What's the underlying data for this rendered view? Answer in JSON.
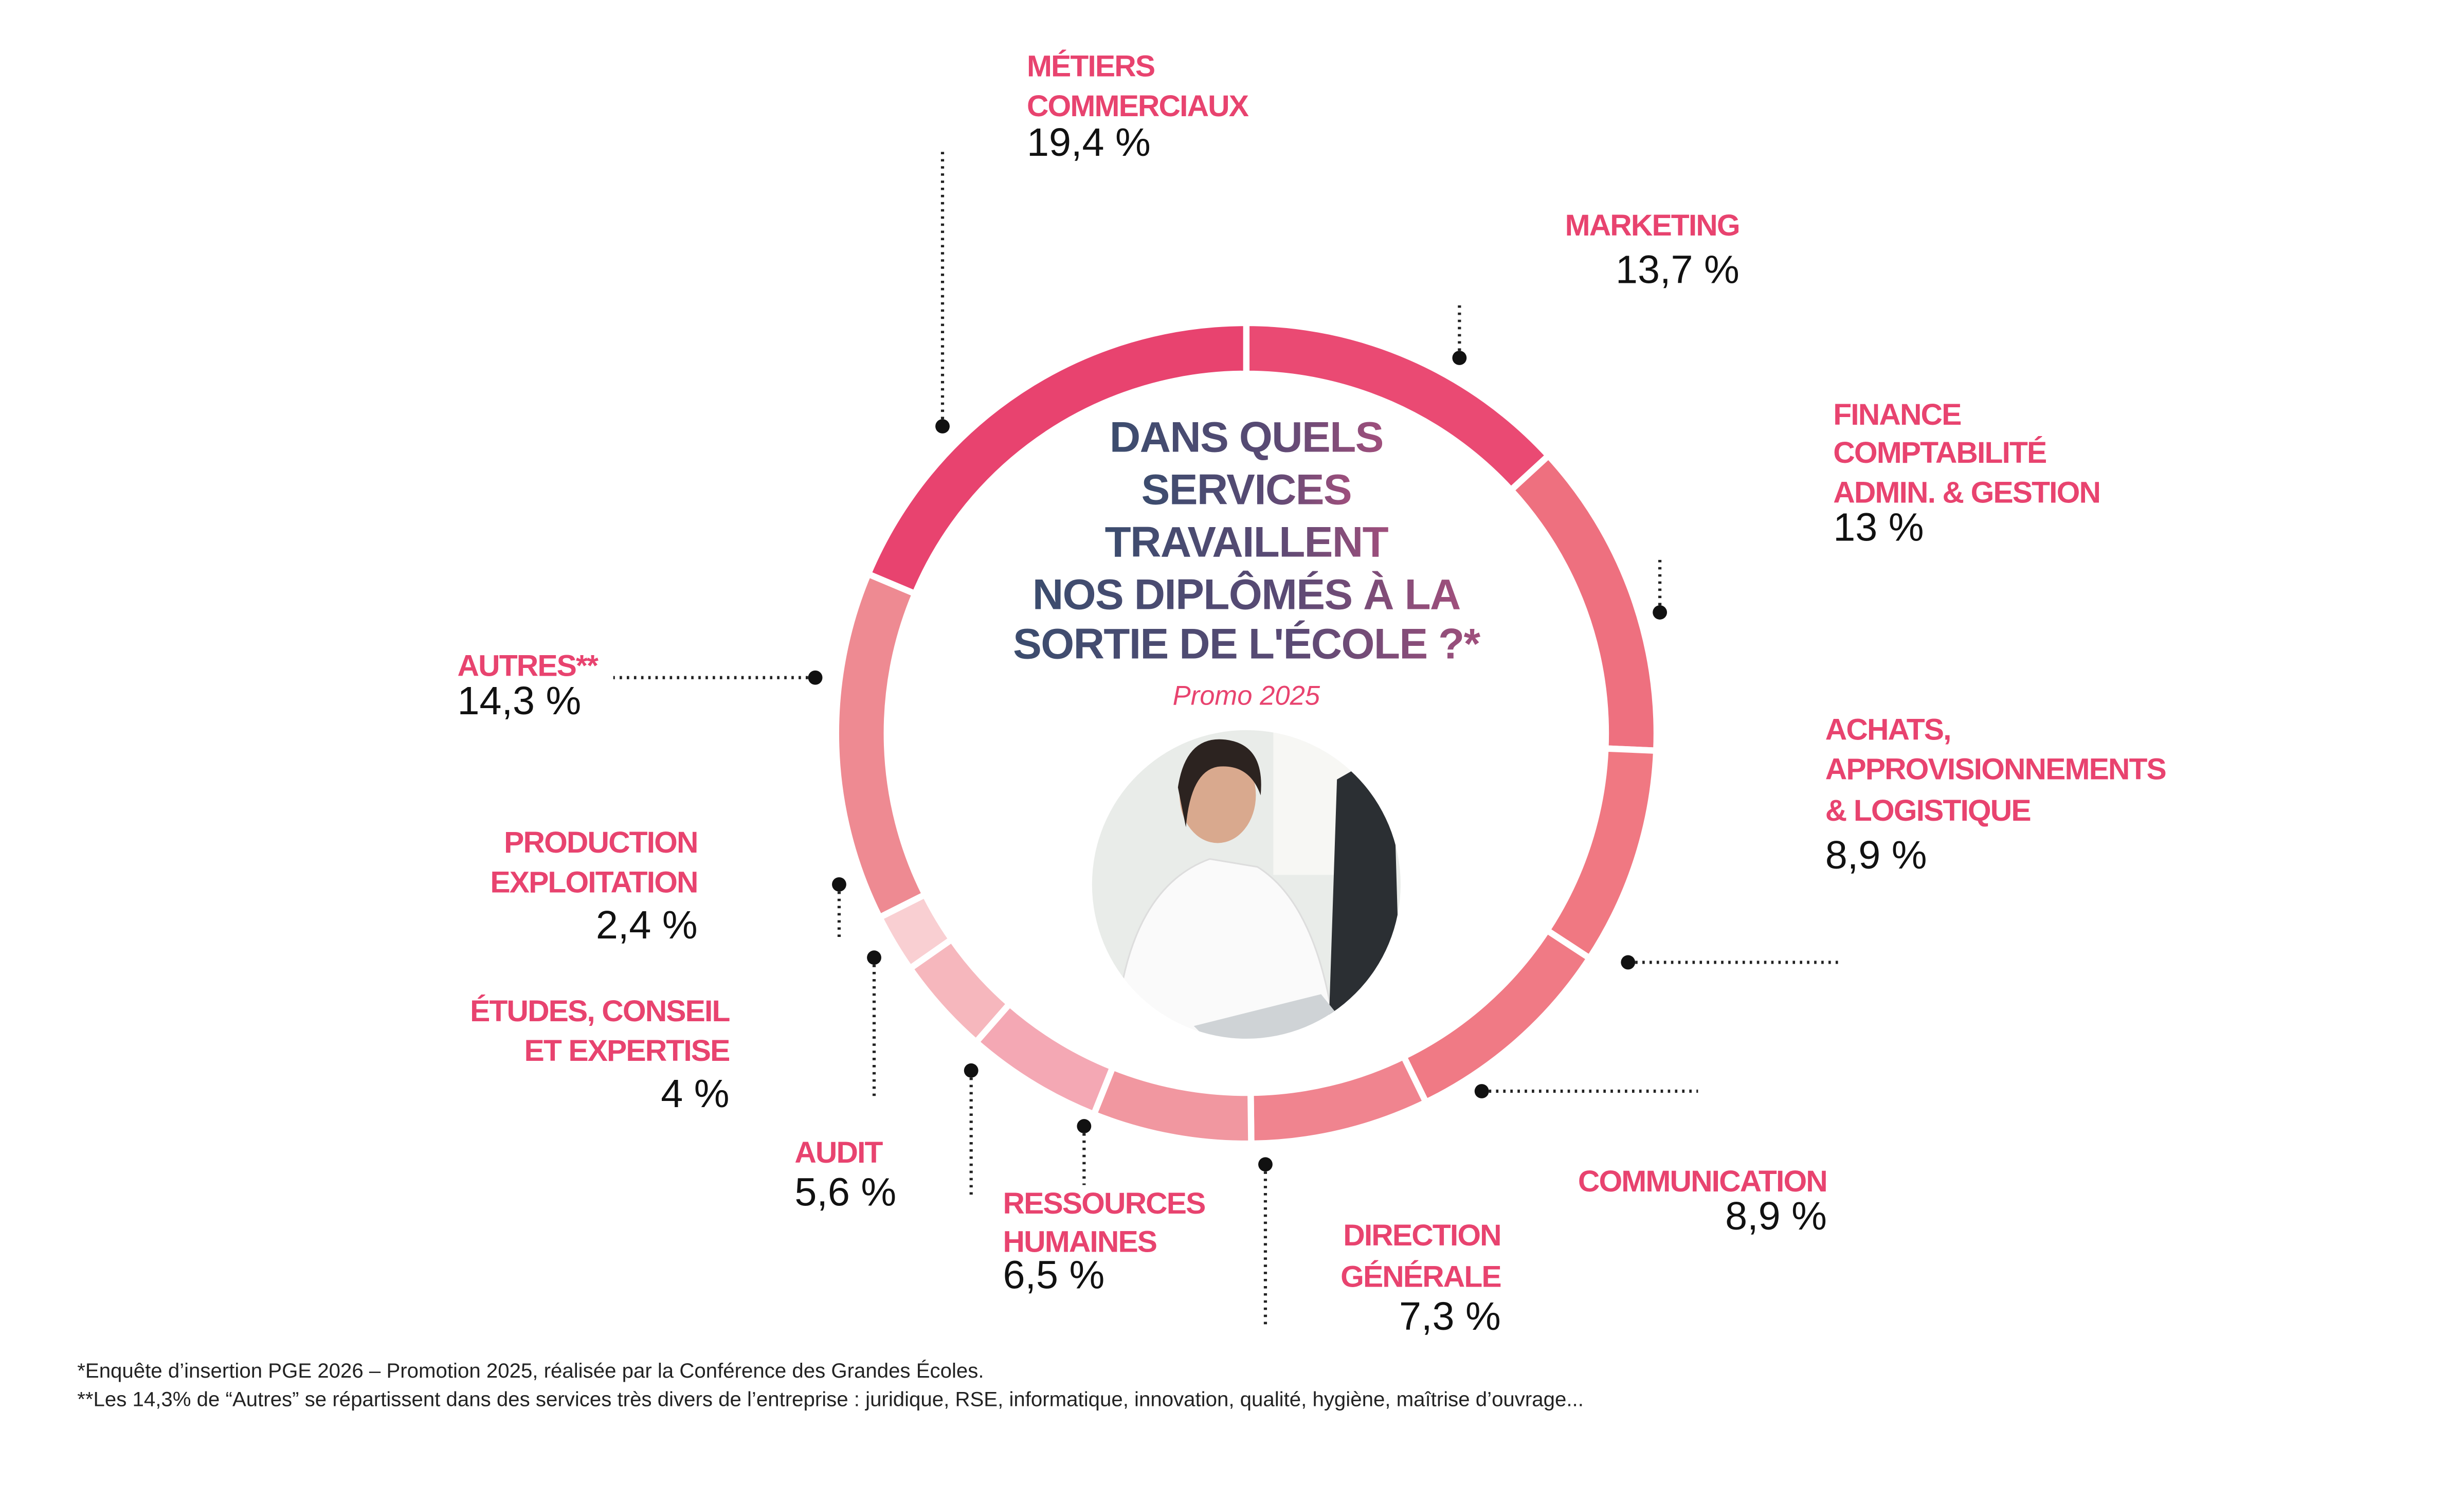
{
  "chart_data": {
    "type": "donut",
    "title": [
      "DANS QUELS",
      "SERVICES",
      "TRAVAILLENT",
      "NOS DIPLÔMÉS À LA",
      "SORTIE DE L'ÉCOLE ?*"
    ],
    "subtitle": "Promo 2025",
    "categories": [
      [
        "MARKETING"
      ],
      [
        "FINANCE",
        "COMPTABILITÉ",
        "ADMIN. & GESTION"
      ],
      [
        "ACHATS,",
        "APPROVISIONNEMENTS",
        "& LOGISTIQUE"
      ],
      [
        "COMMUNICATION"
      ],
      [
        "DIRECTION",
        "GÉNÉRALE"
      ],
      [
        "RESSOURCES",
        "HUMAINES"
      ],
      [
        "AUDIT"
      ],
      [
        "ÉTUDES, CONSEIL",
        "ET EXPERTISE"
      ],
      [
        "PRODUCTION",
        "EXPLOITATION"
      ],
      [
        "AUTRES**"
      ],
      [
        "MÉTIERS",
        "COMMERCIAUX"
      ]
    ],
    "values": [
      13.7,
      13,
      8.9,
      8.9,
      7.3,
      6.5,
      5.6,
      4,
      2.4,
      14.3,
      19.4
    ],
    "value_labels": [
      "13,7 %",
      "13 %",
      "8,9 %",
      "8,9 %",
      "7,3 %",
      "6,5 %",
      "5,6 %",
      "4 %",
      "2,4 %",
      "14,3 %",
      "19,4 %"
    ],
    "colors": [
      "#ea4a73",
      "#ee707f",
      "#f07882",
      "#f07a85",
      "#f0848f",
      "#f197a0",
      "#f4a8b4",
      "#f6b7bd",
      "#f9cfd2",
      "#ee8a92",
      "#e8436f"
    ],
    "label_color": "#e8436f",
    "footnotes": [
      "*Enquête d’insertion PGE 2026 – Promotion 2025, réalisée par la Conférence des Grandes Écoles.",
      "**Les 14,3% de “Autres” se répartissent dans des services très divers de l’entreprise : juridique, RSE, informatique, innovation, qualité, hygiène, maîtrise d’ouvrage..."
    ]
  }
}
